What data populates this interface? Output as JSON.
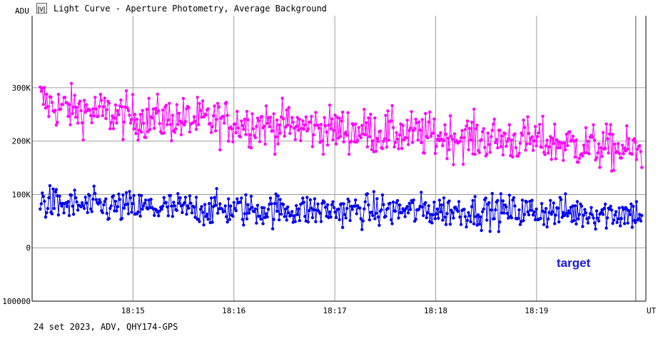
{
  "window": {
    "title": "Light Curve - Aperture Photometry, Average Background"
  },
  "footer": {
    "text": "24 set 2023, ADV, QHY174-GPS"
  },
  "colors": {
    "background_series": "#ff00ff",
    "target_series": "#0000ee",
    "grid": "#a0a0a0",
    "label": "#1a1ad2"
  },
  "chart_data": {
    "type": "line",
    "ylabel": "ADU",
    "xlabel": "UT",
    "ylim": [
      -100000,
      435000
    ],
    "y_ticks": [
      {
        "value": 300000,
        "label": "300K"
      },
      {
        "value": 200000,
        "label": "200K"
      },
      {
        "value": 100000,
        "label": "100K"
      },
      {
        "value": 0,
        "label": "0"
      },
      {
        "value": -100000,
        "label": "100000"
      }
    ],
    "x_ticks": [
      "18:15",
      "18:16",
      "18:17",
      "18:18",
      "18:19"
    ],
    "x_range_minutes": [
      "18:14:00",
      "18:20:05"
    ],
    "marker_line": "18:19:59",
    "grid": true,
    "annotation": "target",
    "series": [
      {
        "name": "",
        "color": "#ff00ff",
        "trend": [
          [
            0.0,
            290000
          ],
          [
            0.2,
            265000
          ],
          [
            1.0,
            245000
          ],
          [
            2.0,
            235000
          ],
          [
            3.0,
            222000
          ],
          [
            4.0,
            210000
          ],
          [
            5.0,
            200000
          ],
          [
            6.08,
            180000
          ]
        ],
        "noise": 30000
      },
      {
        "name": "target",
        "color": "#0000ee",
        "trend": [
          [
            0.0,
            90000
          ],
          [
            0.3,
            80000
          ],
          [
            1.0,
            75000
          ],
          [
            2.0,
            72000
          ],
          [
            3.0,
            70000
          ],
          [
            4.0,
            70000
          ],
          [
            5.0,
            68000
          ],
          [
            6.08,
            64000
          ]
        ],
        "noise": 22000
      }
    ]
  }
}
